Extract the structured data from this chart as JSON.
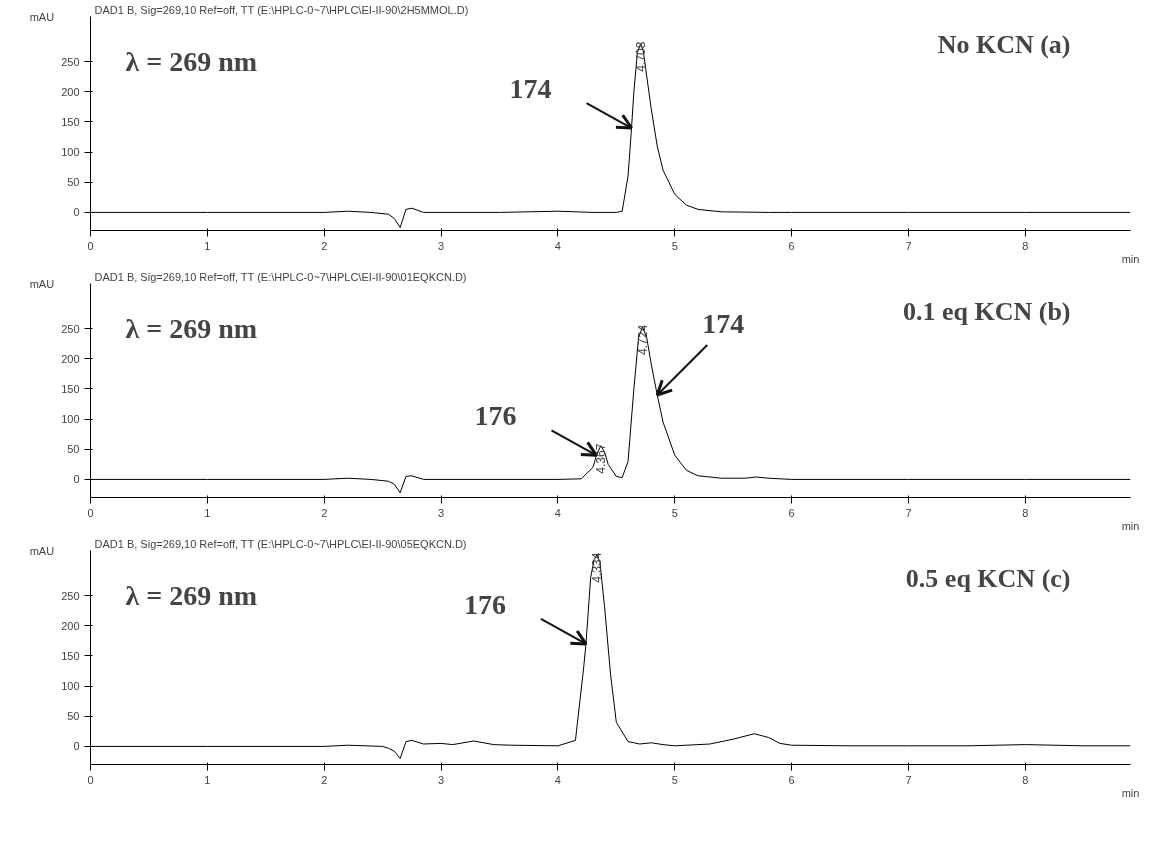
{
  "chart_data": [
    {
      "type": "line",
      "title": "DAD1 B, Sig=269,10 Ref=off, TT (E:\\HPLC-0~7\\HPLC\\EI-II-90\\2H5MMOL.D)",
      "subtitle": "No KCN (a)",
      "xlabel": "min",
      "ylabel": "mAU",
      "color": "#000000",
      "grid": false,
      "x": [
        0,
        1,
        2,
        2.2,
        2.4,
        2.55,
        2.6,
        2.65,
        2.7,
        2.75,
        2.85,
        3,
        3.5,
        4,
        4.3,
        4.5,
        4.55,
        4.6,
        4.63,
        4.65,
        4.68,
        4.708,
        4.73,
        4.75,
        4.8,
        4.85,
        4.9,
        5.0,
        5.1,
        5.2,
        5.4,
        5.8,
        6,
        7,
        8,
        8.9
      ],
      "values": [
        0,
        0,
        0,
        2,
        0,
        -3,
        -10,
        -25,
        5,
        7,
        0,
        0,
        0,
        2,
        0,
        0,
        2,
        60,
        140,
        200,
        265,
        280,
        268,
        240,
        170,
        110,
        70,
        30,
        12,
        5,
        1,
        0,
        0,
        0,
        0,
        0
      ],
      "xlim": [
        0,
        8.9
      ],
      "ylim": [
        -30,
        325
      ],
      "xticks": [
        0,
        1,
        2,
        3,
        4,
        5,
        6,
        7,
        8
      ],
      "yticks": [
        0,
        50,
        100,
        150,
        200,
        250
      ],
      "annotations": [
        "λ = 269 nm",
        {
          "text": "4.708",
          "x": 4.708,
          "y": 280
        },
        {
          "text": "174",
          "x": 4.63,
          "y": 140
        }
      ]
    },
    {
      "type": "line",
      "title": "DAD1 B, Sig=269,10 Ref=off, TT (E:\\HPLC-0~7\\HPLC\\EI-II-90\\01EQKCN.D)",
      "subtitle": "0.1 eq KCN (b)",
      "xlabel": "min",
      "ylabel": "mAU",
      "color": "#000000",
      "grid": false,
      "x": [
        0,
        1,
        2,
        2.2,
        2.4,
        2.55,
        2.6,
        2.65,
        2.7,
        2.75,
        2.85,
        3,
        4,
        4.2,
        4.3,
        4.33,
        4.367,
        4.4,
        4.43,
        4.5,
        4.55,
        4.6,
        4.65,
        4.69,
        4.724,
        4.76,
        4.8,
        4.85,
        4.9,
        5.0,
        5.1,
        5.2,
        5.4,
        5.6,
        5.7,
        5.8,
        6,
        7,
        8,
        8.9
      ],
      "values": [
        0,
        0,
        0,
        2,
        0,
        -3,
        -8,
        -22,
        5,
        6,
        0,
        0,
        0,
        1,
        20,
        40,
        56,
        45,
        25,
        5,
        3,
        30,
        150,
        235,
        253,
        235,
        190,
        140,
        95,
        40,
        15,
        6,
        2,
        2,
        4,
        2,
        0,
        0,
        0,
        0
      ],
      "xlim": [
        0,
        8.9
      ],
      "ylim": [
        -30,
        325
      ],
      "xticks": [
        0,
        1,
        2,
        3,
        4,
        5,
        6,
        7,
        8
      ],
      "yticks": [
        0,
        50,
        100,
        150,
        200,
        250
      ],
      "annotations": [
        "λ = 269 nm",
        {
          "text": "4.367",
          "x": 4.367,
          "y": 56
        },
        {
          "text": "4.724",
          "x": 4.724,
          "y": 253
        },
        {
          "text": "176",
          "x": 4.33,
          "y": 40
        },
        {
          "text": "174",
          "x": 4.85,
          "y": 140
        }
      ]
    },
    {
      "type": "line",
      "title": "DAD1 B, Sig=269,10 Ref=off, TT (E:\\HPLC-0~7\\HPLC\\EI-II-90\\05EQKCN.D)",
      "subtitle": "0.5 eq KCN (c)",
      "xlabel": "min",
      "ylabel": "mAU",
      "color": "#000000",
      "grid": false,
      "x": [
        0,
        1,
        2,
        2.2,
        2.5,
        2.55,
        2.6,
        2.65,
        2.7,
        2.75,
        2.85,
        3,
        3.1,
        3.28,
        3.45,
        3.6,
        4,
        4.15,
        4.22,
        4.24,
        4.28,
        4.31,
        4.334,
        4.36,
        4.4,
        4.45,
        4.5,
        4.6,
        4.7,
        4.8,
        4.9,
        5,
        5.3,
        5.5,
        5.68,
        5.8,
        5.9,
        6,
        6.5,
        7,
        7.5,
        8,
        8.5,
        8.9
      ],
      "values": [
        0,
        0,
        0,
        2,
        0,
        -3,
        -8,
        -20,
        8,
        10,
        4,
        5,
        3,
        9,
        3,
        2,
        1,
        10,
        130,
        170,
        280,
        310,
        318,
        305,
        230,
        120,
        40,
        8,
        4,
        6,
        3,
        1,
        4,
        12,
        21,
        15,
        5,
        2,
        1,
        1,
        1,
        3,
        1,
        1
      ],
      "xlim": [
        0,
        8.9
      ],
      "ylim": [
        -30,
        325
      ],
      "xticks": [
        0,
        1,
        2,
        3,
        4,
        5,
        6,
        7,
        8
      ],
      "yticks": [
        0,
        50,
        100,
        150,
        200,
        250
      ],
      "annotations": [
        "λ = 269 nm",
        {
          "text": "4.334",
          "x": 4.334,
          "y": 318
        },
        {
          "text": "176",
          "x": 4.24,
          "y": 170
        }
      ]
    }
  ]
}
